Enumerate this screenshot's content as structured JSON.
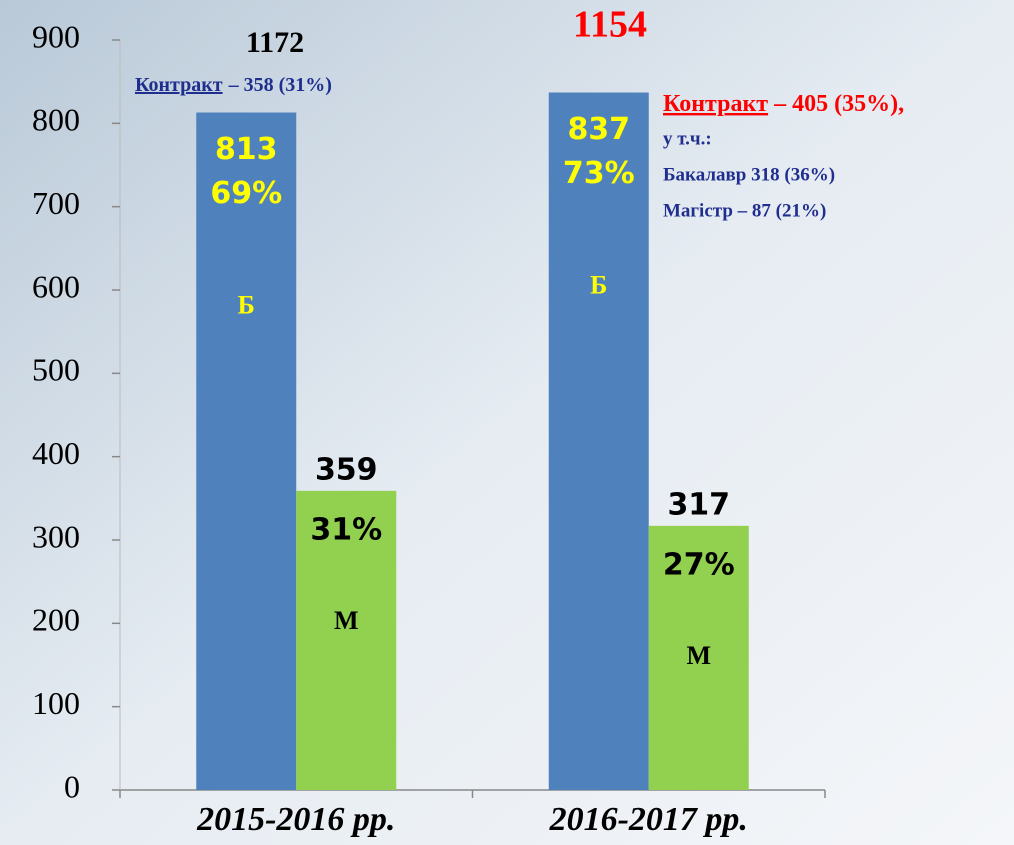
{
  "chart_data": {
    "type": "bar",
    "categories": [
      "2015-2016 рр.",
      "2016-2017 рр."
    ],
    "series": [
      {
        "name": "Б",
        "color": "#4f81bd",
        "values": [
          813,
          837
        ],
        "percent_labels": [
          "69%",
          "73%"
        ]
      },
      {
        "name": "М",
        "color": "#92d050",
        "values": [
          359,
          317
        ],
        "percent_labels": [
          "31%",
          "27%"
        ]
      }
    ],
    "totals": [
      1172,
      1154
    ],
    "notes": [
      {
        "link": "Контракт",
        "text": "– 358 (31%)"
      },
      {
        "link": "Контракт",
        "text": "– 405 (35%),",
        "lines": [
          "у т.ч.:",
          "Бакалавр 318 (36%)",
          "Магістр – 87 (21%)"
        ]
      }
    ],
    "ylim": [
      0,
      900
    ],
    "yticks": [
      0,
      100,
      200,
      300,
      400,
      500,
      600,
      700,
      800,
      900
    ]
  }
}
